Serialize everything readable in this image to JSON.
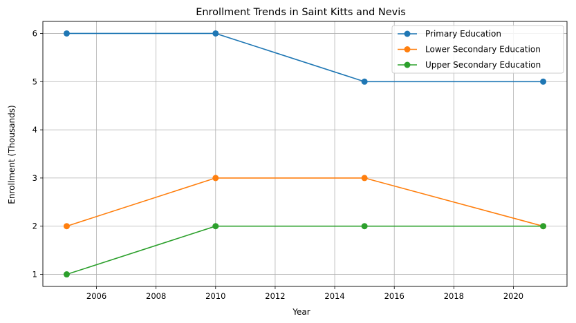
{
  "chart_data": {
    "type": "line",
    "title": "Enrollment Trends in Saint Kitts and Nevis",
    "xlabel": "Year",
    "ylabel": "Enrollment (Thousands)",
    "x": [
      2005,
      2010,
      2015,
      2021
    ],
    "series": [
      {
        "name": "Primary Education",
        "values": [
          6,
          6,
          5,
          5
        ],
        "color": "#1f77b4"
      },
      {
        "name": "Lower Secondary Education",
        "values": [
          2,
          3,
          3,
          2
        ],
        "color": "#ff7f0e"
      },
      {
        "name": "Upper Secondary Education",
        "values": [
          1,
          2,
          2,
          2
        ],
        "color": "#2ca02c"
      }
    ],
    "xlim": [
      2004.2,
      2021.8
    ],
    "ylim": [
      0.75,
      6.25
    ],
    "xticks": [
      2006,
      2008,
      2010,
      2012,
      2014,
      2016,
      2018,
      2020
    ],
    "yticks": [
      1,
      2,
      3,
      4,
      5,
      6
    ],
    "grid": true,
    "legend_position": "top-right"
  }
}
